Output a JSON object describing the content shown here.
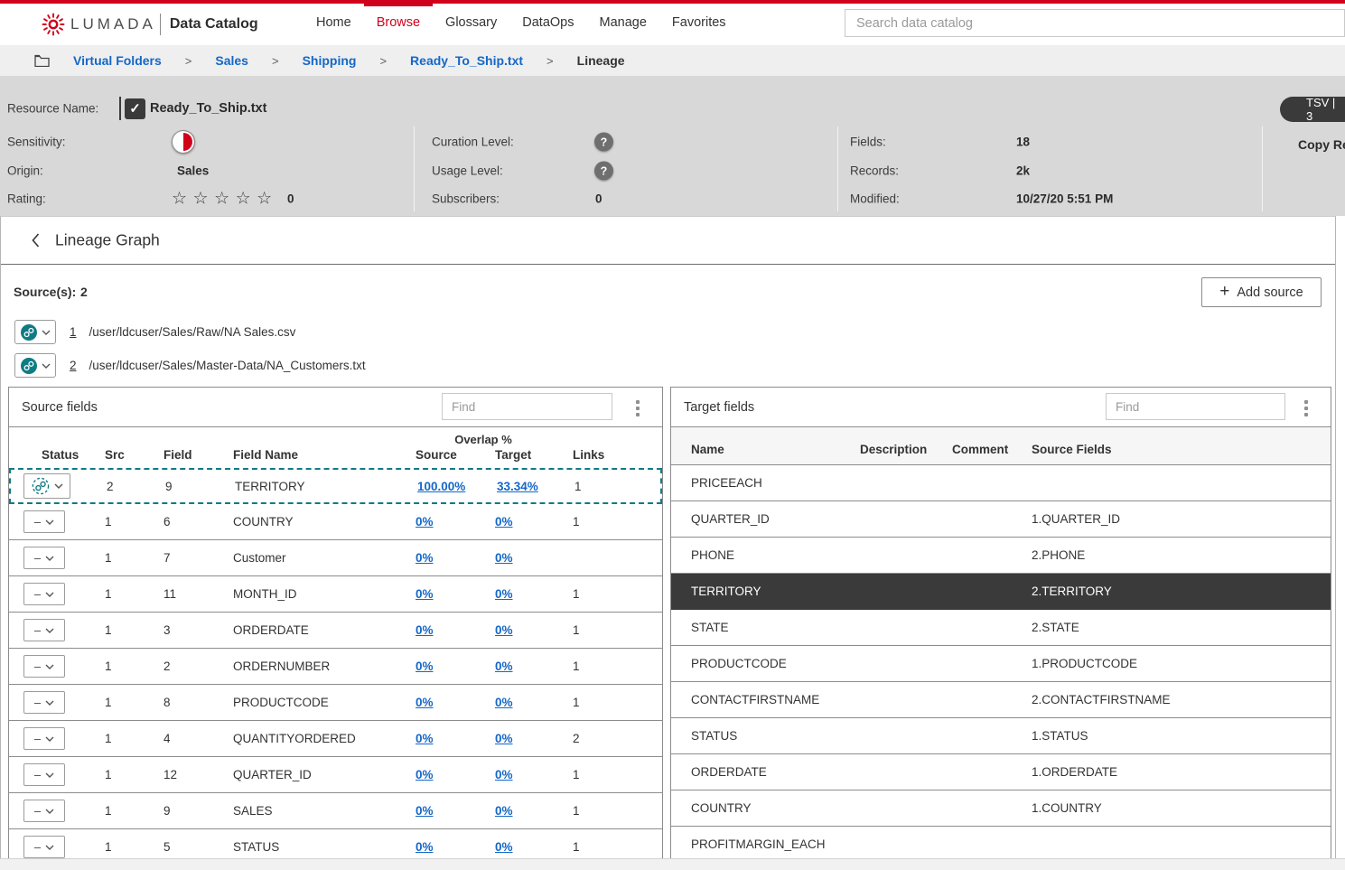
{
  "colors": {
    "accent_red": "#d0021b",
    "teal": "#0f7b85",
    "link_blue": "#1467c8",
    "selected_row_bg": "#3a3a3a",
    "resource_bar_gray": "#d8d8d8"
  },
  "icons": {
    "logo": "lumada-burst-icon",
    "folder": "folder-icon",
    "breadcrumb_separator": ">",
    "resource_check": "✓",
    "sensitivity": "half-red-circle-icon",
    "question": "?",
    "star_empty": "☆",
    "back": "chevron-left-icon",
    "plus": "+",
    "source_link": "chain-link-circle-icon",
    "status_linked": "chain-link-dashed-circle-icon",
    "status_unset": "–",
    "chevron_down": "chevron-down-icon",
    "more_options": "kebab-vertical-icon"
  },
  "brand": {
    "name": "LUMADA",
    "product": "Data Catalog"
  },
  "nav": {
    "items": [
      {
        "label": "Home",
        "active": false
      },
      {
        "label": "Browse",
        "active": true
      },
      {
        "label": "Glossary",
        "active": false
      },
      {
        "label": "DataOps",
        "active": false
      },
      {
        "label": "Manage",
        "active": false
      },
      {
        "label": "Favorites",
        "active": false
      }
    ],
    "search_placeholder": "Search data catalog"
  },
  "breadcrumb": {
    "separator": ">",
    "items": [
      {
        "label": "Virtual Folders"
      },
      {
        "label": "Sales"
      },
      {
        "label": "Shipping"
      },
      {
        "label": "Ready_To_Ship.txt"
      },
      {
        "label": "Lineage",
        "current": true
      }
    ]
  },
  "resource": {
    "name_label": "Resource Name:",
    "name": "Ready_To_Ship.txt",
    "sensitivity_label": "Sensitivity:",
    "origin_label": "Origin:",
    "origin": "Sales",
    "rating_label": "Rating:",
    "stars": "☆☆☆☆☆",
    "rating_count": "0",
    "curation_label": "Curation Level:",
    "usage_label": "Usage Level:",
    "subscribers_label": "Subscribers:",
    "subscribers": "0",
    "fields_label": "Fields:",
    "fields": "18",
    "records_label": "Records:",
    "records": "2k",
    "modified_label": "Modified:",
    "modified": "10/27/20 5:51 PM",
    "format_badge": "TSV | 3",
    "copy_button": "Copy Re"
  },
  "lineage": {
    "title": "Lineage Graph",
    "sources_label": "Source(s):",
    "sources_count": "2",
    "add_source_label": "Add source",
    "sources": [
      {
        "num": "1",
        "path": "/user/ldcuser/Sales/Raw/NA Sales.csv"
      },
      {
        "num": "2",
        "path": "/user/ldcuser/Sales/Master-Data/NA_Customers.txt"
      }
    ]
  },
  "source_fields": {
    "title": "Source fields",
    "find_placeholder": "Find",
    "overlap_header": "Overlap %",
    "columns": {
      "status": "Status",
      "src": "Src",
      "field": "Field",
      "field_name": "Field Name",
      "source": "Source",
      "target": "Target",
      "links": "Links"
    },
    "rows": [
      {
        "status": "linked",
        "selected": true,
        "src": "2",
        "field": "9",
        "field_name": "TERRITORY",
        "source": "100.00%",
        "target": "33.34%",
        "links": "1"
      },
      {
        "status": "unset",
        "selected": false,
        "src": "1",
        "field": "6",
        "field_name": "COUNTRY",
        "source": "0%",
        "target": "0%",
        "links": "1"
      },
      {
        "status": "unset",
        "selected": false,
        "src": "1",
        "field": "7",
        "field_name": "Customer",
        "source": "0%",
        "target": "0%",
        "links": ""
      },
      {
        "status": "unset",
        "selected": false,
        "src": "1",
        "field": "11",
        "field_name": "MONTH_ID",
        "source": "0%",
        "target": "0%",
        "links": "1"
      },
      {
        "status": "unset",
        "selected": false,
        "src": "1",
        "field": "3",
        "field_name": "ORDERDATE",
        "source": "0%",
        "target": "0%",
        "links": "1"
      },
      {
        "status": "unset",
        "selected": false,
        "src": "1",
        "field": "2",
        "field_name": "ORDERNUMBER",
        "source": "0%",
        "target": "0%",
        "links": "1"
      },
      {
        "status": "unset",
        "selected": false,
        "src": "1",
        "field": "8",
        "field_name": "PRODUCTCODE",
        "source": "0%",
        "target": "0%",
        "links": "1"
      },
      {
        "status": "unset",
        "selected": false,
        "src": "1",
        "field": "4",
        "field_name": "QUANTITYORDERED",
        "source": "0%",
        "target": "0%",
        "links": "2"
      },
      {
        "status": "unset",
        "selected": false,
        "src": "1",
        "field": "12",
        "field_name": "QUARTER_ID",
        "source": "0%",
        "target": "0%",
        "links": "1"
      },
      {
        "status": "unset",
        "selected": false,
        "src": "1",
        "field": "9",
        "field_name": "SALES",
        "source": "0%",
        "target": "0%",
        "links": "1"
      },
      {
        "status": "unset",
        "selected": false,
        "src": "1",
        "field": "5",
        "field_name": "STATUS",
        "source": "0%",
        "target": "0%",
        "links": "1"
      }
    ]
  },
  "target_fields": {
    "title": "Target fields",
    "find_placeholder": "Find",
    "columns": {
      "name": "Name",
      "description": "Description",
      "comment": "Comment",
      "source_fields": "Source Fields"
    },
    "rows": [
      {
        "name": "PRICEEACH",
        "description": "",
        "comment": "",
        "source_fields": "",
        "selected": false
      },
      {
        "name": "QUARTER_ID",
        "description": "",
        "comment": "",
        "source_fields": "1.QUARTER_ID",
        "selected": false
      },
      {
        "name": "PHONE",
        "description": "",
        "comment": "",
        "source_fields": "2.PHONE",
        "selected": false
      },
      {
        "name": "TERRITORY",
        "description": "",
        "comment": "",
        "source_fields": "2.TERRITORY",
        "selected": true
      },
      {
        "name": "STATE",
        "description": "",
        "comment": "",
        "source_fields": "2.STATE",
        "selected": false
      },
      {
        "name": "PRODUCTCODE",
        "description": "",
        "comment": "",
        "source_fields": "1.PRODUCTCODE",
        "selected": false
      },
      {
        "name": "CONTACTFIRSTNAME",
        "description": "",
        "comment": "",
        "source_fields": "2.CONTACTFIRSTNAME",
        "selected": false
      },
      {
        "name": "STATUS",
        "description": "",
        "comment": "",
        "source_fields": "1.STATUS",
        "selected": false
      },
      {
        "name": "ORDERDATE",
        "description": "",
        "comment": "",
        "source_fields": "1.ORDERDATE",
        "selected": false
      },
      {
        "name": "COUNTRY",
        "description": "",
        "comment": "",
        "source_fields": "1.COUNTRY",
        "selected": false
      },
      {
        "name": "PROFITMARGIN_EACH",
        "description": "",
        "comment": "",
        "source_fields": "",
        "selected": false
      }
    ]
  }
}
